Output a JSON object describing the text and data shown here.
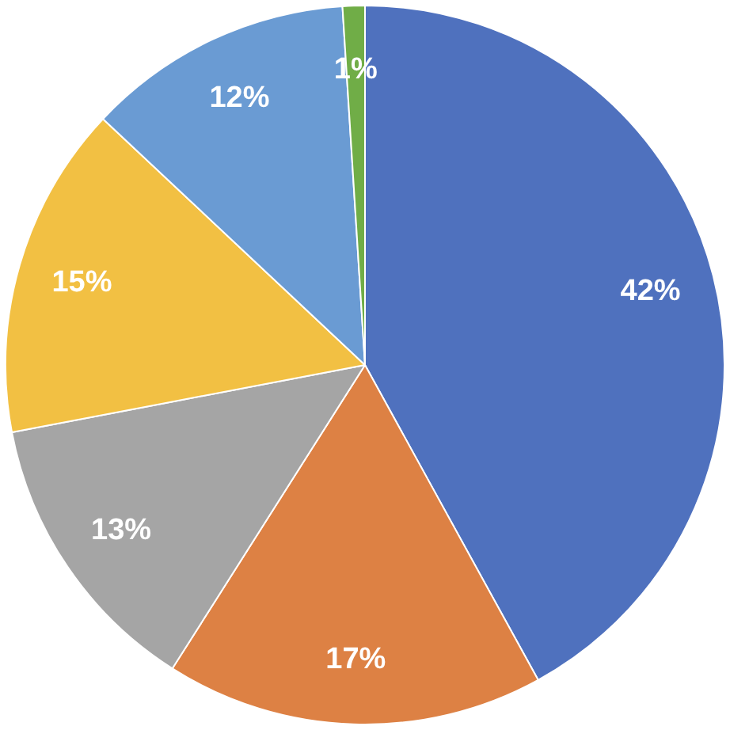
{
  "chart_data": {
    "type": "pie",
    "categories": [
      null,
      null,
      null,
      null,
      null,
      null
    ],
    "values": [
      42,
      17,
      13,
      15,
      12,
      1
    ],
    "colors": [
      "#4f71be",
      "#dd8144",
      "#a5a5a5",
      "#f2c043",
      "#6a9bd3",
      "#70ad47"
    ],
    "value_labels": [
      "42%",
      "17%",
      "13%",
      "15%",
      "12%",
      "1%"
    ],
    "legend": false
  }
}
